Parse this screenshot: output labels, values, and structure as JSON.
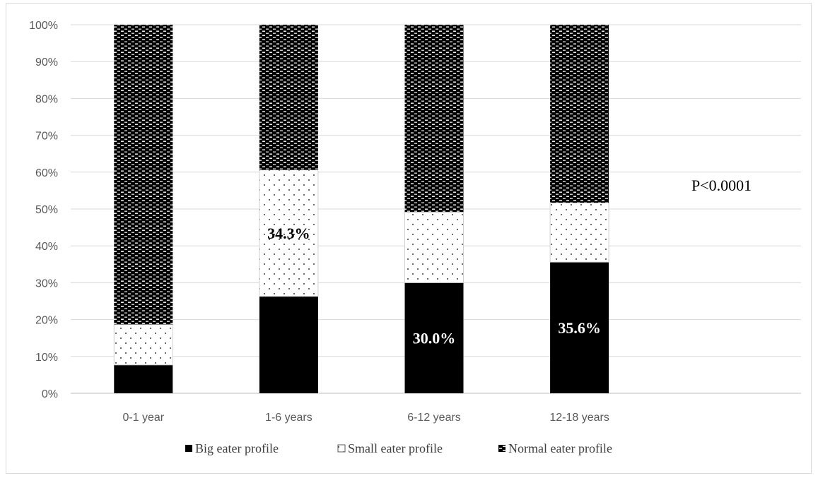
{
  "chart_data": {
    "type": "bar",
    "stacked": true,
    "categories": [
      "0-1 year",
      "1-6 years",
      "6-12 years",
      "12-18 years"
    ],
    "series": [
      {
        "name": "Big eater profile",
        "values": [
          7.7,
          26.3,
          30.0,
          35.6
        ],
        "pattern": "solid",
        "color": "#000000"
      },
      {
        "name": "Small eater profile",
        "values": [
          11.0,
          34.3,
          19.2,
          16.1
        ],
        "pattern": "dots",
        "color": "#ffffff"
      },
      {
        "name": "Normal eater profile",
        "values": [
          81.3,
          39.4,
          50.8,
          48.3
        ],
        "pattern": "dashes",
        "color": "#000000"
      }
    ],
    "y_ticks": [
      "0%",
      "10%",
      "20%",
      "30%",
      "40%",
      "50%",
      "60%",
      "70%",
      "80%",
      "90%",
      "100%"
    ],
    "ylim": [
      0,
      100
    ],
    "grid": true,
    "legend_position": "bottom",
    "data_labels": [
      {
        "category": "1-6 years",
        "series": "Small eater profile",
        "text": "34.3%",
        "color": "#000000"
      },
      {
        "category": "6-12 years",
        "series": "Big eater profile",
        "text": "30.0%",
        "color": "#ffffff"
      },
      {
        "category": "12-18 years",
        "series": "Big eater profile",
        "text": "35.6%",
        "color": "#ffffff"
      }
    ],
    "annotation": "P<0.0001"
  }
}
